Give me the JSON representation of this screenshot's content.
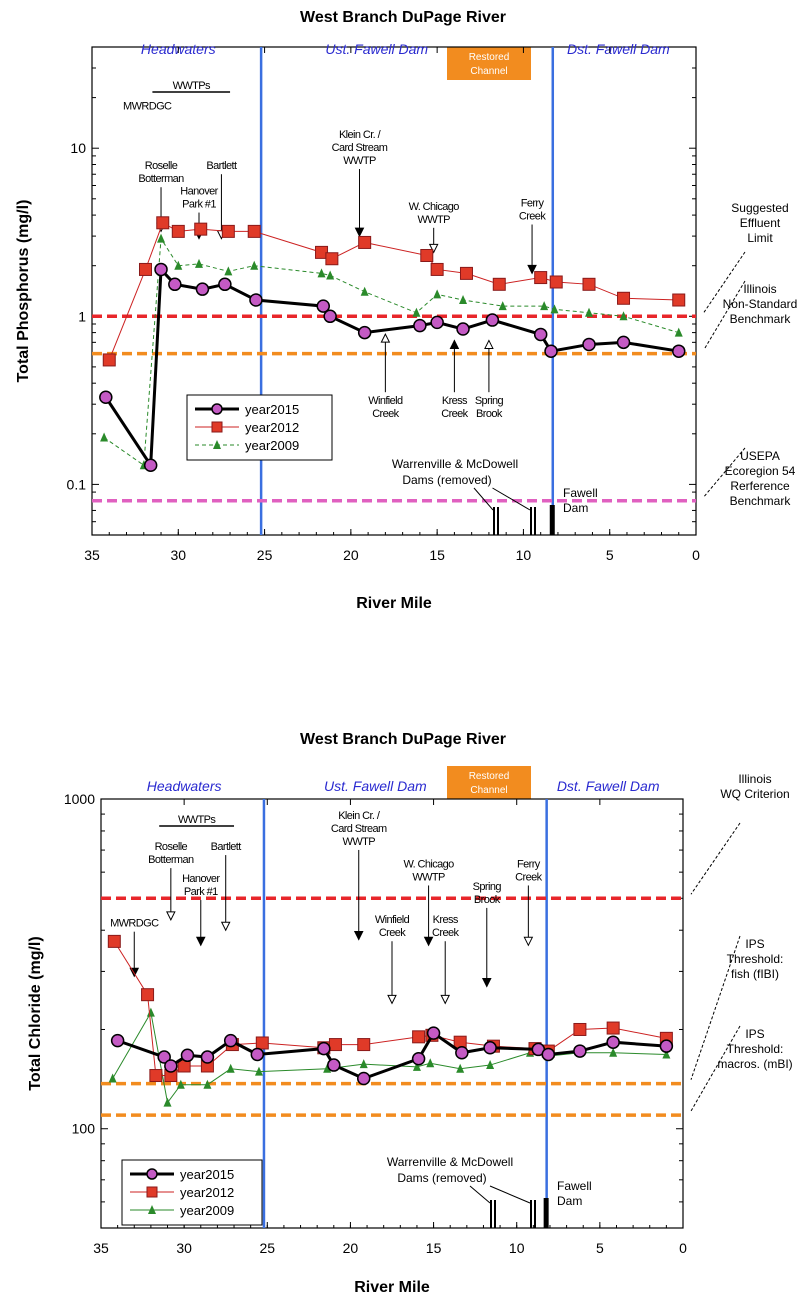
{
  "chart_data": [
    {
      "type": "line",
      "title": "West Branch DuPage River",
      "xlabel": "River Mile",
      "ylabel": "Total Phosphorus (mg/l)",
      "xlim": [
        35,
        0
      ],
      "ylim": [
        0.05,
        40
      ],
      "yscale": "log",
      "x_ticks": [
        "35",
        "30",
        "25",
        "20",
        "15",
        "10",
        "5",
        "0"
      ],
      "y_ticks": [
        {
          "v": 0.1,
          "label": "0.1"
        },
        {
          "v": 1,
          "label": "1"
        },
        {
          "v": 10,
          "label": "10"
        }
      ],
      "regions": [
        {
          "label": "Headwaters",
          "x": 30
        },
        {
          "label": "Ust. Fawell Dam",
          "x": 18.5
        },
        {
          "label": "Dst. Fawell Dam",
          "x": 4.5
        }
      ],
      "restored_label": [
        "Restored",
        "Channel"
      ],
      "restored_x": 11,
      "dividers": [
        25.2,
        8.3
      ],
      "wwtps_label": "WWTPs",
      "wwtps_range": [
        31.5,
        27
      ],
      "reference_lines": [
        {
          "y": 1.0,
          "color": "#e8262a",
          "text": [
            "Suggested",
            "Effluent",
            "Limit"
          ]
        },
        {
          "y": 0.6,
          "color": "#f28c1f",
          "text": [
            "Illinois",
            "Non-Standard",
            "Benchmark"
          ]
        },
        {
          "y": 0.08,
          "color": "#e060c0",
          "text": [
            "USEPA",
            "Ecoregion 54",
            "Rerference",
            "Benchmark"
          ]
        }
      ],
      "annotations": [
        {
          "lines": [
            "MWRDGC"
          ],
          "x": 31.8,
          "yt": 17,
          "arrow_from": 17,
          "arrow_to": 17,
          "side": "none"
        },
        {
          "lines": [
            "Roselle",
            "Botterman"
          ],
          "x": 31.0,
          "yt": 7.5,
          "arrow_from": 6.5,
          "arrow_to": 3.2,
          "side": "down"
        },
        {
          "lines": [
            "Hanover",
            "Park #1"
          ],
          "x": 28.8,
          "yt": 5.3,
          "arrow_from": 4.2,
          "arrow_to": 2.9,
          "side": "down"
        },
        {
          "lines": [
            "Bartlett"
          ],
          "x": 27.5,
          "yt": 7.5,
          "arrow_from": 6.5,
          "arrow_to": 2.9,
          "side": "down"
        },
        {
          "lines": [
            "Klein Cr. /",
            "Card Stream",
            "WWTP"
          ],
          "x": 19.5,
          "yt": 11.5,
          "arrow_from": 5.5,
          "arrow_to": 3.0,
          "side": "down"
        },
        {
          "lines": [
            "W. Chicago",
            "WWTP"
          ],
          "x": 15.2,
          "yt": 4.3,
          "arrow_from": 3.6,
          "arrow_to": 2.4,
          "side": "down"
        },
        {
          "lines": [
            "Ferry",
            "Creek"
          ],
          "x": 9.5,
          "yt": 4.5,
          "arrow_from": 3.5,
          "arrow_to": 1.8,
          "side": "down"
        },
        {
          "lines": [
            "Winfield",
            "Creek"
          ],
          "x": 18.0,
          "yt": 0.3,
          "arrow_from": 0.35,
          "arrow_to": 0.85,
          "side": "up"
        },
        {
          "lines": [
            "Kress",
            "Creek"
          ],
          "x": 14.0,
          "yt": 0.3,
          "arrow_from": 0.35,
          "arrow_to": 0.78,
          "side": "up"
        },
        {
          "lines": [
            "Spring",
            "Brook"
          ],
          "x": 12.0,
          "yt": 0.3,
          "arrow_from": 0.35,
          "arrow_to": 0.78,
          "side": "up"
        }
      ],
      "dams_label": [
        "Warrenville & McDowell",
        "Dams (removed)"
      ],
      "fawell_label": [
        "Fawell",
        "Dam"
      ],
      "series": [
        {
          "name": "year2015",
          "color": "#000000",
          "fill": "#c45ac4",
          "marker": "circle",
          "width": 3,
          "x": [
            34.2,
            31.6,
            31.0,
            30.2,
            28.6,
            27.3,
            25.5,
            21.6,
            21.2,
            19.2,
            16.0,
            15.0,
            13.5,
            11.8,
            9.0,
            8.4,
            6.2,
            4.2,
            1.0
          ],
          "y": [
            0.33,
            0.13,
            1.9,
            1.55,
            1.45,
            1.55,
            1.25,
            1.15,
            1.0,
            0.8,
            0.88,
            0.92,
            0.84,
            0.95,
            0.78,
            0.62,
            0.68,
            0.7,
            0.62
          ]
        },
        {
          "name": "year2012",
          "color": "#cc2222",
          "fill": "#e03a28",
          "marker": "square",
          "width": 1,
          "x": [
            34.0,
            31.9,
            30.9,
            30.0,
            28.7,
            27.1,
            25.6,
            21.7,
            21.1,
            19.2,
            15.6,
            15.0,
            13.3,
            11.4,
            9.0,
            8.1,
            6.2,
            4.2,
            1.0
          ],
          "y": [
            0.55,
            1.9,
            3.6,
            3.2,
            3.3,
            3.2,
            3.2,
            2.4,
            2.2,
            2.75,
            2.3,
            1.9,
            1.8,
            1.55,
            1.7,
            1.6,
            1.55,
            1.28,
            1.25
          ]
        },
        {
          "name": "year2009",
          "color": "#2a8a2a",
          "fill": "#2a8a2a",
          "marker": "triangle",
          "width": 1,
          "dash": "4,3",
          "x": [
            34.3,
            32.0,
            31.0,
            30.0,
            28.8,
            27.1,
            25.6,
            21.7,
            21.2,
            19.2,
            16.2,
            15.0,
            13.5,
            11.2,
            8.8,
            8.2,
            6.2,
            4.2,
            1.0
          ],
          "y": [
            0.19,
            0.13,
            2.9,
            2.0,
            2.05,
            1.85,
            2.0,
            1.8,
            1.75,
            1.4,
            1.05,
            1.35,
            1.25,
            1.15,
            1.15,
            1.1,
            1.05,
            1.0,
            0.8
          ]
        }
      ]
    },
    {
      "type": "line",
      "title": "West Branch DuPage River",
      "xlabel": "River Mile",
      "ylabel": "Total Chloride (mg/l)",
      "xlim": [
        35,
        0
      ],
      "ylim": [
        50,
        1000
      ],
      "yscale": "log",
      "x_ticks": [
        "35",
        "30",
        "25",
        "20",
        "15",
        "10",
        "5",
        "0"
      ],
      "y_ticks": [
        {
          "v": 100,
          "label": "100"
        },
        {
          "v": 1000,
          "label": "1000"
        }
      ],
      "regions": [
        {
          "label": "Headwaters",
          "x": 30
        },
        {
          "label": "Ust. Fawell Dam",
          "x": 18.5
        },
        {
          "label": "Dst. Fawell Dam",
          "x": 4.5
        }
      ],
      "restored_label": [
        "Restored",
        "Channel"
      ],
      "restored_x": 11,
      "dividers": [
        25.2,
        8.2
      ],
      "wwtps_label": "WWTPs",
      "wwtps_range": [
        31.5,
        27
      ],
      "reference_lines": [
        {
          "y": 500,
          "color": "#e8262a",
          "text": [
            "Illinois",
            "WQ Criterion"
          ]
        },
        {
          "y": 137,
          "color": "#f28c1f",
          "text": [
            "IPS",
            "Threshold:",
            "fish (fIBI)"
          ]
        },
        {
          "y": 110,
          "color": "#f28c1f",
          "text": [
            "IPS",
            "Threshold:",
            "macros. (mBI)"
          ]
        }
      ],
      "annotations": [
        {
          "lines": [
            "MWRDGC"
          ],
          "x": 33.0,
          "yt": 410,
          "arrow_from": 380,
          "arrow_to": 290,
          "side": "down"
        },
        {
          "lines": [
            "Roselle",
            "Botterman"
          ],
          "x": 30.8,
          "yt": 700,
          "arrow_from": 560,
          "arrow_to": 430,
          "side": "down"
        },
        {
          "lines": [
            "Hanover",
            "Park #1"
          ],
          "x": 29.0,
          "yt": 560,
          "arrow_from": 470,
          "arrow_to": 360,
          "side": "down"
        },
        {
          "lines": [
            "Bartlett"
          ],
          "x": 27.5,
          "yt": 700,
          "arrow_from": 600,
          "arrow_to": 400,
          "side": "down"
        },
        {
          "lines": [
            "Klein Cr. /",
            "Card Stream",
            "WWTP"
          ],
          "x": 19.5,
          "yt": 870,
          "arrow_from": 480,
          "arrow_to": 375,
          "side": "down"
        },
        {
          "lines": [
            "Winfield",
            "Creek"
          ],
          "x": 17.5,
          "yt": 420,
          "arrow_from": 350,
          "arrow_to": 240,
          "side": "down"
        },
        {
          "lines": [
            "W. Chicago",
            "WWTP"
          ],
          "x": 15.3,
          "yt": 620,
          "arrow_from": 460,
          "arrow_to": 360,
          "side": "down"
        },
        {
          "lines": [
            "Kress",
            "Creek"
          ],
          "x": 14.3,
          "yt": 420,
          "arrow_from": 350,
          "arrow_to": 240,
          "side": "down"
        },
        {
          "lines": [
            "Spring",
            "Brook"
          ],
          "x": 11.8,
          "yt": 530,
          "arrow_from": 450,
          "arrow_to": 270,
          "side": "down"
        },
        {
          "lines": [
            "Ferry",
            "Creek"
          ],
          "x": 9.3,
          "yt": 620,
          "arrow_from": 470,
          "arrow_to": 360,
          "side": "down"
        }
      ],
      "dams_label": [
        "Warrenville & McDowell",
        "Dams (removed)"
      ],
      "fawell_label": [
        "Fawell",
        "Dam"
      ],
      "series": [
        {
          "name": "year2015",
          "color": "#000000",
          "fill": "#c45ac4",
          "marker": "circle",
          "width": 3,
          "x": [
            34.0,
            31.2,
            30.8,
            29.8,
            28.6,
            27.2,
            25.6,
            21.6,
            21.0,
            19.2,
            15.9,
            15.0,
            13.3,
            11.6,
            8.7,
            8.1,
            6.2,
            4.2,
            1.0
          ],
          "y": [
            185,
            165,
            155,
            167,
            165,
            185,
            168,
            175,
            156,
            142,
            163,
            195,
            170,
            176,
            174,
            168,
            172,
            183,
            178
          ]
        },
        {
          "name": "year2012",
          "color": "#cc2222",
          "fill": "#e03a28",
          "marker": "square",
          "width": 1,
          "x": [
            34.2,
            32.2,
            31.7,
            30.8,
            30.0,
            28.6,
            27.1,
            25.3,
            21.6,
            20.9,
            19.2,
            15.9,
            15.1,
            13.4,
            11.4,
            8.9,
            8.1,
            6.2,
            4.2,
            1.0
          ],
          "y": [
            370,
            255,
            145,
            145,
            155,
            155,
            180,
            182,
            176,
            180,
            180,
            190,
            192,
            183,
            178,
            175,
            172,
            200,
            202,
            188
          ]
        },
        {
          "name": "year2009",
          "color": "#2a8a2a",
          "fill": "#2a8a2a",
          "marker": "triangle",
          "width": 1,
          "x": [
            34.3,
            32.0,
            31.0,
            30.2,
            28.6,
            27.2,
            25.5,
            21.4,
            19.2,
            16.0,
            15.2,
            13.4,
            11.6,
            9.2,
            8.1,
            6.2,
            4.2,
            1.0
          ],
          "y": [
            142,
            225,
            120,
            136,
            136,
            152,
            149,
            152,
            157,
            154,
            158,
            152,
            156,
            170,
            166,
            170,
            170,
            168
          ]
        }
      ]
    }
  ]
}
